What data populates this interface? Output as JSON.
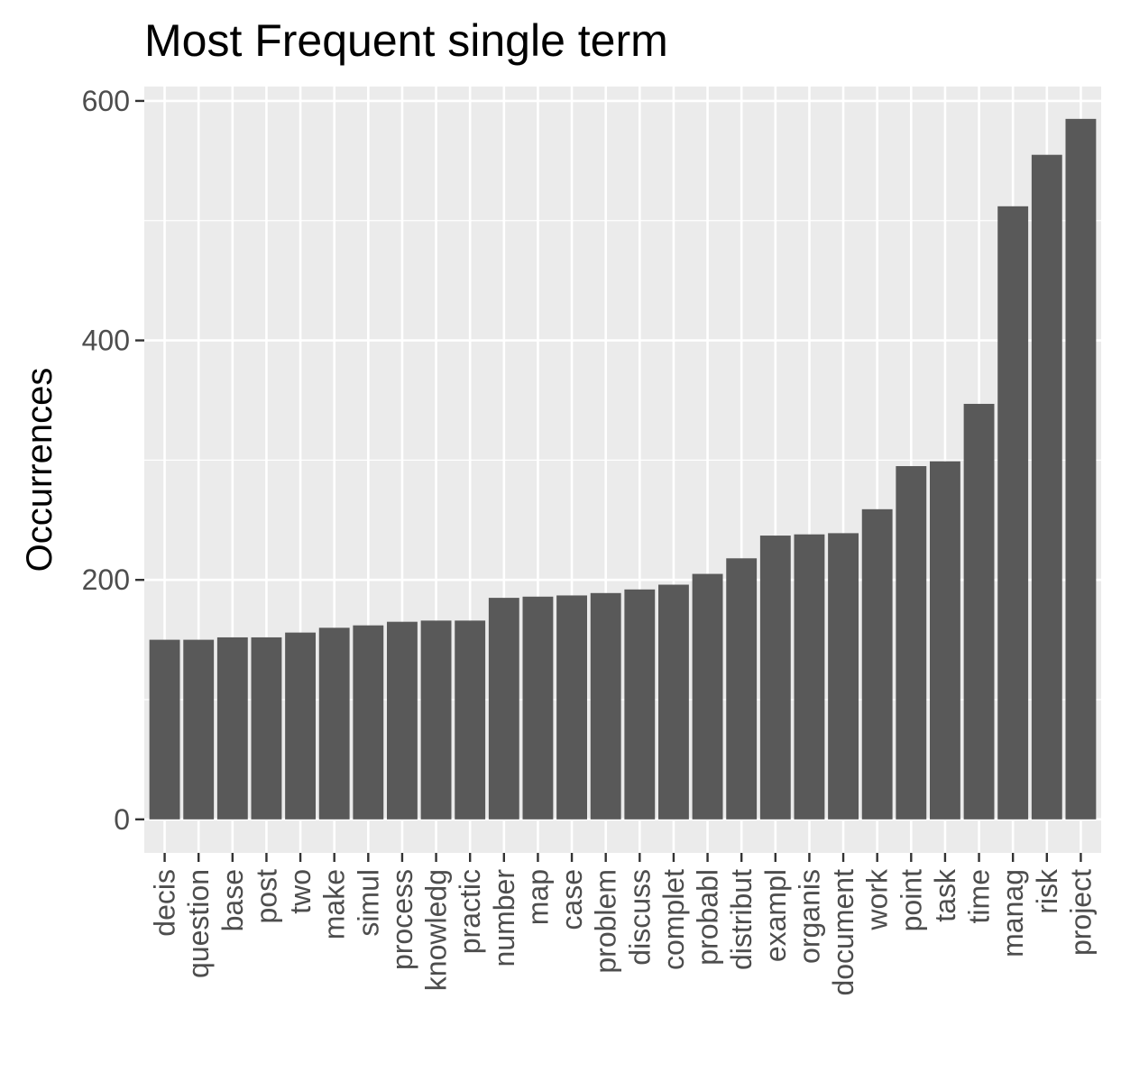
{
  "chart_data": {
    "type": "bar",
    "title": "Most Frequent single term",
    "xlabel": "",
    "ylabel": "Occurrences",
    "ylim": [
      -28,
      612
    ],
    "yticks": [
      0,
      200,
      400,
      600
    ],
    "grid": true,
    "legend": "none",
    "bar_color": "#595959",
    "panel_color": "#ebebeb",
    "categories": [
      "decis",
      "question",
      "base",
      "post",
      "two",
      "make",
      "simul",
      "process",
      "knowledg",
      "practic",
      "number",
      "map",
      "case",
      "problem",
      "discuss",
      "complet",
      "probabl",
      "distribut",
      "exampl",
      "organis",
      "document",
      "work",
      "point",
      "task",
      "time",
      "manag",
      "risk",
      "project"
    ],
    "values": [
      150,
      150,
      152,
      152,
      156,
      160,
      162,
      165,
      166,
      166,
      185,
      186,
      187,
      189,
      192,
      196,
      205,
      218,
      237,
      238,
      239,
      259,
      295,
      299,
      347,
      512,
      555,
      585
    ]
  }
}
